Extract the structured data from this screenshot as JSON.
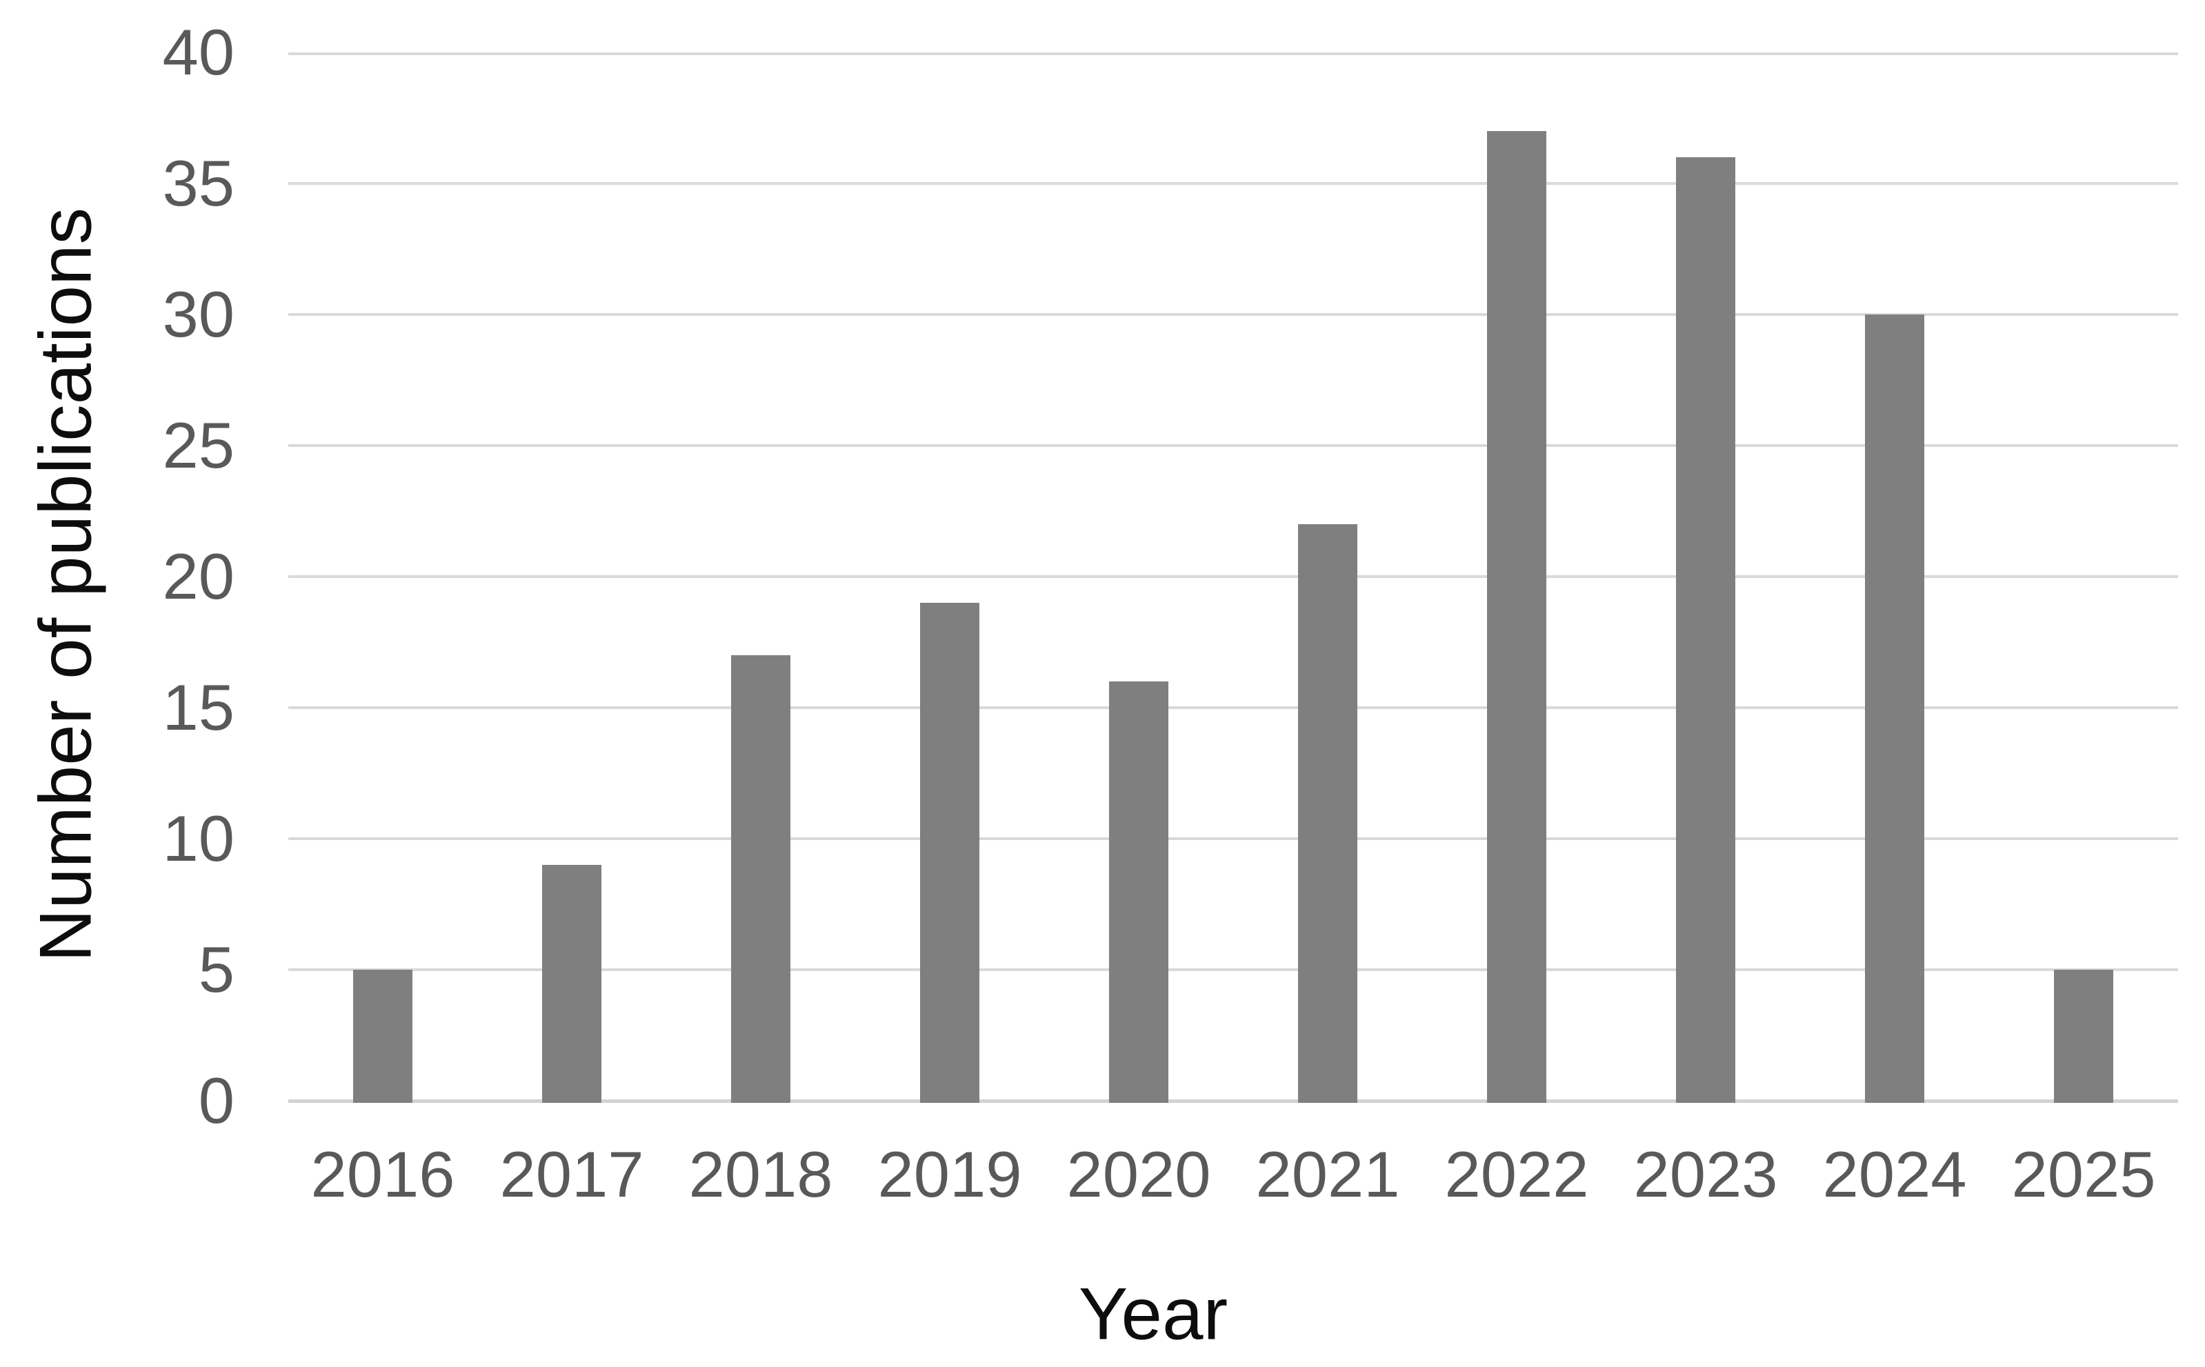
{
  "chart_data": {
    "type": "bar",
    "title": "",
    "categories": [
      "2016",
      "2017",
      "2018",
      "2019",
      "2020",
      "2021",
      "2022",
      "2023",
      "2024",
      "2025"
    ],
    "values": [
      5,
      9,
      17,
      19,
      16,
      22,
      37,
      36,
      30,
      5
    ],
    "xlabel": "Year",
    "ylabel": "Number of publications",
    "ylim": [
      0,
      40
    ],
    "yticks": [
      0,
      5,
      10,
      15,
      20,
      25,
      30,
      35,
      40
    ],
    "grid": true,
    "legend": false,
    "colors": {
      "bar": "#7F7F7F",
      "gridline": "#D9D9D9",
      "axis_line": "#D2D2D2",
      "tick_label": "#595959",
      "axis_title": "#0D0D0D",
      "background": "#FFFFFF"
    }
  }
}
